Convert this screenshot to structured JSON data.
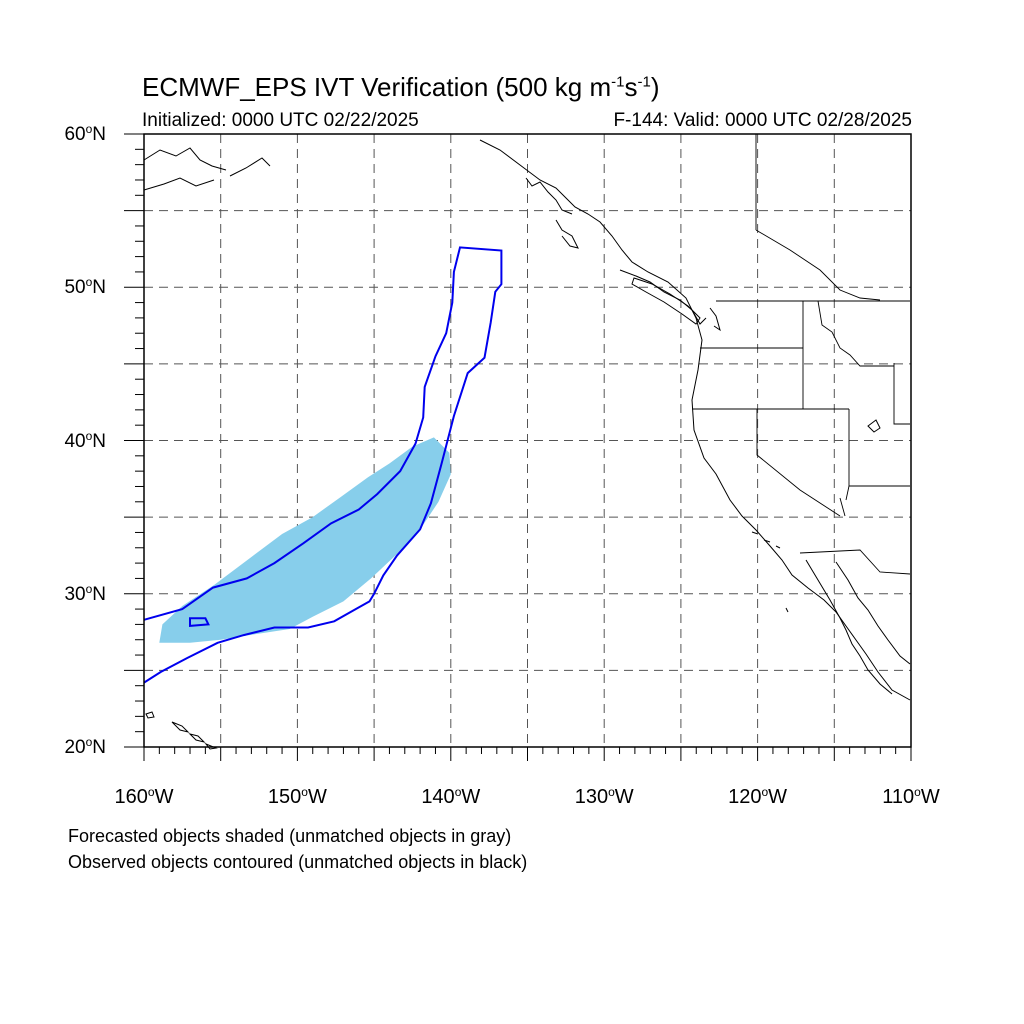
{
  "title": {
    "main": "ECMWF_EPS IVT Verification (500 kg m",
    "exp1": "-1",
    "mid": "s",
    "exp2": "-1",
    "close": ")"
  },
  "subtitle": {
    "initialized": "Initialized: 0000 UTC 02/22/2025",
    "valid": "F-144: Valid: 0000 UTC 02/28/2025"
  },
  "axes": {
    "lat_ticks": [
      {
        "value": 60,
        "text": "60",
        "hemi": "N"
      },
      {
        "value": 50,
        "text": "50",
        "hemi": "N"
      },
      {
        "value": 40,
        "text": "40",
        "hemi": "N"
      },
      {
        "value": 30,
        "text": "30",
        "hemi": "N"
      },
      {
        "value": 20,
        "text": "20",
        "hemi": "N"
      }
    ],
    "lon_ticks": [
      {
        "value": -160,
        "text": "160",
        "hemi": "W"
      },
      {
        "value": -150,
        "text": "150",
        "hemi": "W"
      },
      {
        "value": -140,
        "text": "140",
        "hemi": "W"
      },
      {
        "value": -130,
        "text": "130",
        "hemi": "W"
      },
      {
        "value": -120,
        "text": "120",
        "hemi": "W"
      },
      {
        "value": -110,
        "text": "110",
        "hemi": "W"
      }
    ],
    "lon_range": [
      -160,
      -110
    ],
    "lat_range": [
      20,
      60
    ],
    "grid_spacing_deg": 5
  },
  "captions": {
    "line1": "Forecasted objects shaded (unmatched objects in gray)",
    "line2": "Observed objects contoured (unmatched objects in black)"
  },
  "colors": {
    "forecast_fill": "#87ceeb",
    "observed_contour": "#0000ee",
    "coastline": "#000000",
    "grid": "#555555"
  },
  "objects": {
    "forecast_shaded": [
      [
        -159.0,
        26.8
      ],
      [
        -157.0,
        26.8
      ],
      [
        -155.0,
        27.0
      ],
      [
        -152.5,
        27.4
      ],
      [
        -150.5,
        27.7
      ],
      [
        -149.0,
        28.5
      ],
      [
        -147.0,
        29.5
      ],
      [
        -145.2,
        31.0
      ],
      [
        -143.6,
        32.5
      ],
      [
        -142.0,
        34.2
      ],
      [
        -140.8,
        36.0
      ],
      [
        -140.0,
        37.8
      ],
      [
        -140.1,
        39.2
      ],
      [
        -141.1,
        40.2
      ],
      [
        -142.5,
        39.6
      ],
      [
        -144.0,
        38.5
      ],
      [
        -145.4,
        37.6
      ],
      [
        -147.2,
        36.3
      ],
      [
        -149.0,
        35.0
      ],
      [
        -151.0,
        33.9
      ],
      [
        -153.0,
        32.4
      ],
      [
        -155.4,
        30.6
      ],
      [
        -157.5,
        29.2
      ],
      [
        -158.8,
        28.0
      ]
    ],
    "observed_contours": [
      [
        [
          -160.0,
          28.3
        ],
        [
          -157.5,
          29.0
        ],
        [
          -155.5,
          30.4
        ],
        [
          -153.3,
          31.0
        ],
        [
          -151.5,
          32.0
        ],
        [
          -149.6,
          33.3
        ],
        [
          -147.8,
          34.6
        ],
        [
          -146.0,
          35.5
        ],
        [
          -144.8,
          36.5
        ],
        [
          -143.3,
          38.0
        ],
        [
          -142.3,
          39.8
        ],
        [
          -141.8,
          41.5
        ],
        [
          -141.7,
          43.5
        ],
        [
          -141.0,
          45.5
        ],
        [
          -140.3,
          47.0
        ],
        [
          -139.9,
          49.0
        ],
        [
          -139.8,
          51.0
        ],
        [
          -139.4,
          52.6
        ],
        [
          -136.7,
          52.4
        ],
        [
          -136.7,
          50.2
        ],
        [
          -137.1,
          49.7
        ],
        [
          -137.4,
          47.7
        ],
        [
          -137.8,
          45.4
        ],
        [
          -138.9,
          44.4
        ],
        [
          -139.8,
          41.6
        ],
        [
          -140.6,
          38.5
        ],
        [
          -141.3,
          35.9
        ],
        [
          -142.0,
          34.2
        ],
        [
          -143.5,
          32.5
        ],
        [
          -144.4,
          31.2
        ],
        [
          -145.0,
          30.0
        ],
        [
          -145.3,
          29.5
        ],
        [
          -146.2,
          29.0
        ],
        [
          -147.6,
          28.2
        ],
        [
          -149.3,
          27.8
        ],
        [
          -151.5,
          27.8
        ],
        [
          -153.5,
          27.3
        ],
        [
          -155.2,
          26.8
        ],
        [
          -157.2,
          25.8
        ],
        [
          -158.9,
          24.9
        ],
        [
          -160.0,
          24.2
        ]
      ],
      [
        [
          -157.0,
          28.4
        ],
        [
          -156.0,
          28.4
        ],
        [
          -155.8,
          28.0
        ],
        [
          -157.0,
          27.9
        ]
      ]
    ]
  }
}
